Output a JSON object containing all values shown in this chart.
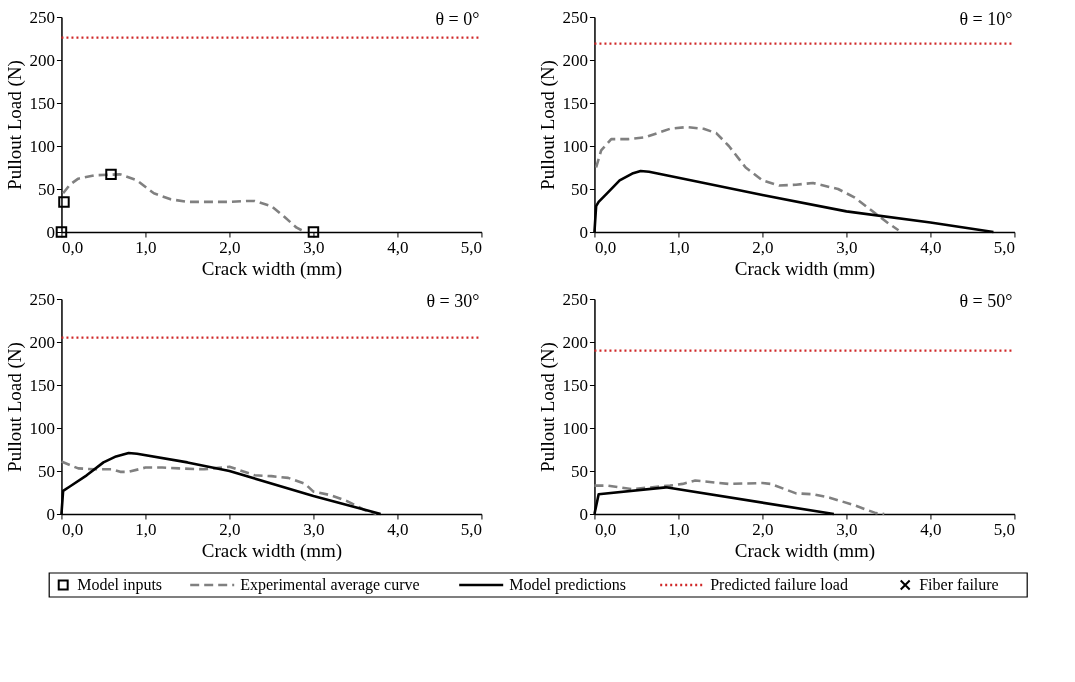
{
  "chart_data": [
    {
      "type": "line",
      "xlabel": "Crack width (mm)",
      "ylabel": "Pullout Load (N)",
      "annotations": [
        "θ = 0°"
      ],
      "xlim": [
        0,
        5
      ],
      "xticks": [
        {
          "value": 0,
          "label": "0,0"
        },
        {
          "value": 1,
          "label": "1,0"
        },
        {
          "value": 2,
          "label": "2,0"
        },
        {
          "value": 3,
          "label": "3,0"
        },
        {
          "value": 4,
          "label": "4,0"
        },
        {
          "value": 5,
          "label": "5,0"
        }
      ],
      "ylim": [
        0,
        250
      ],
      "yticks": [
        0,
        50,
        100,
        150,
        200,
        250
      ],
      "grid": false,
      "legend": "bottom",
      "series": [
        {
          "name": "Model inputs",
          "type": "scatter",
          "marker": "square",
          "color": "#000000",
          "x": [
            0,
            0.03,
            0.59,
            3.0
          ],
          "values": [
            0,
            35,
            67,
            0
          ]
        },
        {
          "name": "Experimental average curve",
          "type": "line",
          "line_style": "dashed",
          "color": "#808080",
          "x": [
            0.02,
            0.1,
            0.2,
            0.4,
            0.7,
            0.9,
            1.1,
            1.3,
            1.5,
            2.0,
            2.2,
            2.3,
            2.5,
            2.65,
            2.8,
            2.9
          ],
          "values": [
            45,
            55,
            62,
            66,
            67,
            60,
            45,
            38,
            35,
            35,
            36,
            36,
            30,
            18,
            5,
            0
          ]
        }
      ],
      "ref_lines": [
        {
          "axis": "y",
          "value": 226,
          "label": "Predicted failure load",
          "color": "#d02828",
          "line_style": "dotted"
        }
      ]
    },
    {
      "type": "line",
      "xlabel": "Crack width (mm)",
      "ylabel": "Pullout Load (N)",
      "annotations": [
        "θ = 10°"
      ],
      "xlim": [
        0,
        5
      ],
      "xticks": [
        {
          "value": 0,
          "label": "0,0"
        },
        {
          "value": 1,
          "label": "1,0"
        },
        {
          "value": 2,
          "label": "2,0"
        },
        {
          "value": 3,
          "label": "3,0"
        },
        {
          "value": 4,
          "label": "4,0"
        },
        {
          "value": 5,
          "label": "5,0"
        }
      ],
      "ylim": [
        0,
        250
      ],
      "yticks": [
        0,
        50,
        100,
        150,
        200,
        250
      ],
      "grid": false,
      "series": [
        {
          "name": "Experimental average curve",
          "type": "line",
          "line_style": "dashed",
          "color": "#808080",
          "x": [
            0.02,
            0.08,
            0.2,
            0.4,
            0.6,
            0.9,
            1.1,
            1.3,
            1.45,
            1.6,
            1.8,
            2.0,
            2.2,
            2.4,
            2.6,
            2.9,
            3.1,
            3.3,
            3.5,
            3.62
          ],
          "values": [
            75,
            95,
            108,
            108,
            110,
            120,
            122,
            120,
            115,
            100,
            75,
            60,
            54,
            55,
            57,
            50,
            40,
            25,
            10,
            2
          ]
        },
        {
          "name": "Model predictions",
          "type": "line",
          "line_style": "solid",
          "color": "#000000",
          "x": [
            0,
            0.02,
            0.05,
            0.15,
            0.3,
            0.45,
            0.55,
            0.65,
            1.0,
            2.0,
            3.0,
            4.0,
            4.75
          ],
          "values": [
            0,
            30,
            35,
            45,
            60,
            68,
            71,
            70,
            63,
            43,
            24,
            11,
            0
          ]
        }
      ],
      "ref_lines": [
        {
          "axis": "y",
          "value": 219,
          "color": "#d02828",
          "line_style": "dotted"
        }
      ]
    },
    {
      "type": "line",
      "xlabel": "Crack width (mm)",
      "ylabel": "Pullout Load (N)",
      "annotations": [
        "θ = 30°"
      ],
      "xlim": [
        0,
        5
      ],
      "xticks": [
        {
          "value": 0,
          "label": "0,0"
        },
        {
          "value": 1,
          "label": "1,0"
        },
        {
          "value": 2,
          "label": "2,0"
        },
        {
          "value": 3,
          "label": "3,0"
        },
        {
          "value": 4,
          "label": "4,0"
        },
        {
          "value": 5,
          "label": "5,0"
        }
      ],
      "ylim": [
        0,
        250
      ],
      "yticks": [
        0,
        50,
        100,
        150,
        200,
        250
      ],
      "grid": false,
      "series": [
        {
          "name": "Experimental average curve",
          "type": "line",
          "line_style": "dashed",
          "color": "#808080",
          "x": [
            0,
            0.2,
            0.4,
            0.6,
            0.7,
            0.8,
            1.0,
            1.2,
            1.4,
            1.7,
            2.0,
            2.3,
            2.5,
            2.7,
            2.9,
            3.0,
            3.2,
            3.4,
            3.6,
            3.75
          ],
          "values": [
            61,
            53,
            52,
            52,
            49,
            49,
            54,
            54,
            53,
            52,
            55,
            45,
            44,
            42,
            35,
            26,
            22,
            15,
            5,
            0
          ]
        },
        {
          "name": "Model predictions",
          "type": "line",
          "line_style": "solid",
          "color": "#000000",
          "x": [
            0,
            0.02,
            0.1,
            0.3,
            0.5,
            0.65,
            0.8,
            0.9,
            1.5,
            2.0,
            3.0,
            3.8
          ],
          "values": [
            0,
            27,
            32,
            45,
            60,
            67,
            71,
            70,
            60,
            50,
            21,
            0
          ]
        }
      ],
      "ref_lines": [
        {
          "axis": "y",
          "value": 205,
          "color": "#d02828",
          "line_style": "dotted"
        }
      ]
    },
    {
      "type": "line",
      "xlabel": "Crack width (mm)",
      "ylabel": "Pullout Load (N)",
      "annotations": [
        "θ = 50°"
      ],
      "xlim": [
        0,
        5
      ],
      "xticks": [
        {
          "value": 0,
          "label": "0,0"
        },
        {
          "value": 1,
          "label": "1,0"
        },
        {
          "value": 2,
          "label": "2,0"
        },
        {
          "value": 3,
          "label": "3,0"
        },
        {
          "value": 4,
          "label": "4,0"
        },
        {
          "value": 5,
          "label": "5,0"
        }
      ],
      "ylim": [
        0,
        250
      ],
      "yticks": [
        0,
        50,
        100,
        150,
        200,
        250
      ],
      "grid": false,
      "series": [
        {
          "name": "Experimental average curve",
          "type": "line",
          "line_style": "dashed",
          "color": "#808080",
          "x": [
            0,
            0.15,
            0.45,
            0.9,
            1.05,
            1.2,
            1.4,
            1.6,
            2.0,
            2.1,
            2.4,
            2.6,
            2.8,
            3.1,
            3.35,
            3.45
          ],
          "values": [
            33,
            33,
            29,
            33,
            35,
            39,
            37,
            35,
            36,
            35,
            24,
            23,
            19,
            10,
            1,
            0
          ]
        },
        {
          "name": "Model predictions",
          "type": "line",
          "line_style": "solid",
          "color": "#000000",
          "x": [
            0,
            0.05,
            0.85,
            2.85
          ],
          "values": [
            0,
            23,
            31,
            0
          ]
        },
        {
          "name": "Fiber failure",
          "type": "scatter",
          "marker": "cross",
          "color": "#000000"
        }
      ],
      "ref_lines": [
        {
          "axis": "y",
          "value": 190,
          "color": "#d02828",
          "line_style": "dotted"
        }
      ]
    }
  ]
}
